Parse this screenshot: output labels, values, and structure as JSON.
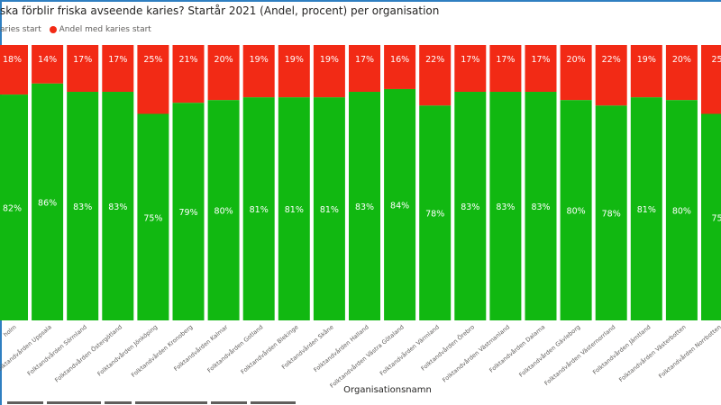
{
  "title": "ska förblir friska avseende karies? Startår 2021 (Andel, procent) per organisation",
  "colors": {
    "green": "#11b811",
    "red": "#f22a15",
    "frame": "#2f7fc1"
  },
  "chart_data": {
    "type": "bar",
    "stacked": true,
    "title": "ska förblir friska avseende karies? Startår 2021 (Andel, procent) per organisation",
    "xlabel": "Organisationsnamn",
    "ylabel": "",
    "ylim": [
      0,
      100
    ],
    "legend": [
      {
        "label": "aries start",
        "color": "#11b811"
      },
      {
        "label": "Andel med karies start",
        "color": "#f22a15"
      }
    ],
    "categories": [
      "holm",
      "Folktandvården Uppsala",
      "Folktandvården Sörmland",
      "Folktandvården Östergötland",
      "Folktandvården Jönköping",
      "Folktandvården Kronoberg",
      "Folktandvården Kalmar",
      "Folktandvården Gotland",
      "Folktandvården Blekinge",
      "Folktandvården Skåne",
      "Folktandvården Halland",
      "Folktandvården Västra Götaland",
      "Folktandvården Värmland",
      "Folktandvården Örebro",
      "Folktandvården Västmanland",
      "Folktandvården Dalarna",
      "Folktandvården Gävleborg",
      "Folktandvården Västernorrland",
      "Folktandvården Jämtland",
      "Folktandvården Västerbotten",
      "Folktandvården Norrbotten"
    ],
    "series": [
      {
        "name": "aries start",
        "values": [
          82,
          86,
          83,
          83,
          75,
          79,
          80,
          81,
          81,
          81,
          83,
          84,
          78,
          83,
          83,
          83,
          80,
          78,
          81,
          80,
          75
        ]
      },
      {
        "name": "Andel med karies start",
        "values": [
          18,
          14,
          17,
          17,
          25,
          21,
          20,
          19,
          19,
          19,
          17,
          16,
          22,
          17,
          17,
          17,
          20,
          22,
          19,
          20,
          25
        ]
      }
    ],
    "green_labels": [
      "82%",
      "86%",
      "83%",
      "83%",
      "75%",
      "79%",
      "80%",
      "81%",
      "81%",
      "81%",
      "83%",
      "84%",
      "78%",
      "83%",
      "83%",
      "83%",
      "80%",
      "78%",
      "81%",
      "80%",
      "75"
    ],
    "red_labels": [
      "18%",
      "14%",
      "17%",
      "17%",
      "25%",
      "21%",
      "20%",
      "19%",
      "19%",
      "19%",
      "17%",
      "16%",
      "22%",
      "17%",
      "17%",
      "17%",
      "20%",
      "22%",
      "19%",
      "20%",
      "25"
    ]
  }
}
